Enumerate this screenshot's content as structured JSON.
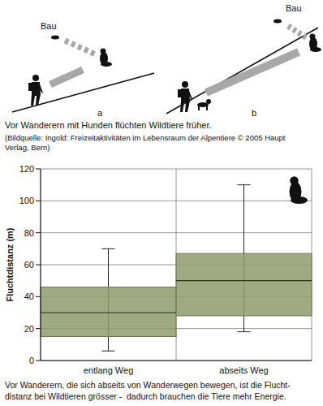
{
  "figure": {
    "panels": [
      {
        "label": "a",
        "burrow": "Bau"
      },
      {
        "label": "b",
        "burrow": "Bau"
      }
    ],
    "caption": "Vor Wanderern mit Hunden flüchten Wildtiere früher.",
    "source": "(Bildquelle: Ingold: Freizeitaktivitäten im Lebensraum der Alpentiere © 2005 Haupt Verlag, Bern)"
  },
  "chart_data": {
    "type": "box",
    "categories": [
      "entlang Weg",
      "abseits Weg"
    ],
    "boxes": [
      {
        "min": 6,
        "q1": 15,
        "median": 30,
        "q3": 46,
        "max": 70
      },
      {
        "min": 18,
        "q1": 28,
        "median": 50,
        "q3": 67,
        "max": 110
      }
    ],
    "ylabel": "Fluchtdistanz (m)",
    "ylim": [
      0,
      120
    ],
    "yticks": [
      0,
      20,
      40,
      60,
      80,
      100,
      120
    ],
    "grid": true,
    "color": "#8e9a6c",
    "caption": [
      "Vor Wanderern, die sich abseits von Wanderwegen bewegen, ist die Flucht-",
      "distanz bei Wildtieren grösser -  dadurch brauchen die Tiere mehr Energie."
    ]
  }
}
